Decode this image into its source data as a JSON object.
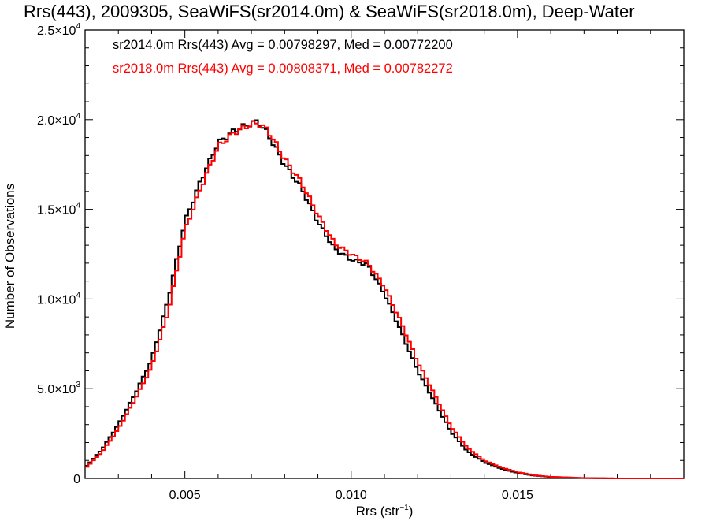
{
  "chart_data": {
    "type": "line",
    "step": true,
    "title": "Rrs(443), 2009305, SeaWiFS(sr2014.0m) & SeaWiFS(sr2018.0m), Deep-Water",
    "xlabel_main": "Rrs (str",
    "xlabel_exp": "−1",
    "xlabel_close": ")",
    "ylabel": "Number of Observations",
    "xlim": [
      0.002,
      0.02
    ],
    "ylim": [
      0,
      25000
    ],
    "x_ticks": [
      {
        "value": 0.005,
        "label": "0.005"
      },
      {
        "value": 0.01,
        "label": "0.010"
      },
      {
        "value": 0.015,
        "label": "0.015"
      }
    ],
    "y_ticks": [
      {
        "value": 0,
        "mant": "0",
        "exp": ""
      },
      {
        "value": 5000,
        "mant": "5.0×10",
        "exp": "3"
      },
      {
        "value": 10000,
        "mant": "1.0×10",
        "exp": "4"
      },
      {
        "value": 15000,
        "mant": "1.5×10",
        "exp": "4"
      },
      {
        "value": 20000,
        "mant": "2.0×10",
        "exp": "4"
      },
      {
        "value": 25000,
        "mant": "2.5×10",
        "exp": "4"
      }
    ],
    "legend": [
      {
        "text": "sr2014.0m Rrs(443) Avg = 0.00798297, Med = 0.00772200",
        "color": "#000000"
      },
      {
        "text": "sr2018.0m Rrs(443) Avg = 0.00808371, Med = 0.00782272",
        "color": "#ff0000"
      }
    ],
    "series": [
      {
        "color": "#000000",
        "x": [
          0.002,
          0.0025,
          0.003,
          0.0035,
          0.004,
          0.0045,
          0.005,
          0.0055,
          0.006,
          0.0065,
          0.007,
          0.0072,
          0.0075,
          0.008,
          0.0085,
          0.009,
          0.0095,
          0.01,
          0.0105,
          0.011,
          0.0115,
          0.012,
          0.0125,
          0.013,
          0.0135,
          0.014,
          0.0145,
          0.015,
          0.0155,
          0.016,
          0.017,
          0.018,
          0.02
        ],
        "y": [
          600,
          1600,
          3000,
          4700,
          6600,
          10000,
          14300,
          16700,
          18700,
          19400,
          19800,
          19900,
          19200,
          17500,
          16200,
          14300,
          12800,
          12200,
          11900,
          10300,
          8200,
          6000,
          4300,
          2600,
          1500,
          900,
          550,
          300,
          160,
          80,
          20,
          0,
          0
        ]
      },
      {
        "color": "#ff0000",
        "x": [
          0.002,
          0.0025,
          0.003,
          0.0035,
          0.004,
          0.0045,
          0.005,
          0.0055,
          0.006,
          0.0065,
          0.007,
          0.0072,
          0.0075,
          0.008,
          0.0085,
          0.009,
          0.0095,
          0.01,
          0.0105,
          0.011,
          0.0115,
          0.012,
          0.0125,
          0.013,
          0.0135,
          0.014,
          0.0145,
          0.015,
          0.0155,
          0.016,
          0.017,
          0.018,
          0.02
        ],
        "y": [
          550,
          1450,
          2750,
          4400,
          6200,
          9300,
          13800,
          16300,
          18500,
          19300,
          19750,
          19800,
          19400,
          17800,
          16500,
          14700,
          13100,
          12500,
          12000,
          10700,
          8700,
          6500,
          4700,
          2900,
          1700,
          1000,
          620,
          350,
          180,
          90,
          25,
          0,
          0
        ]
      }
    ]
  }
}
